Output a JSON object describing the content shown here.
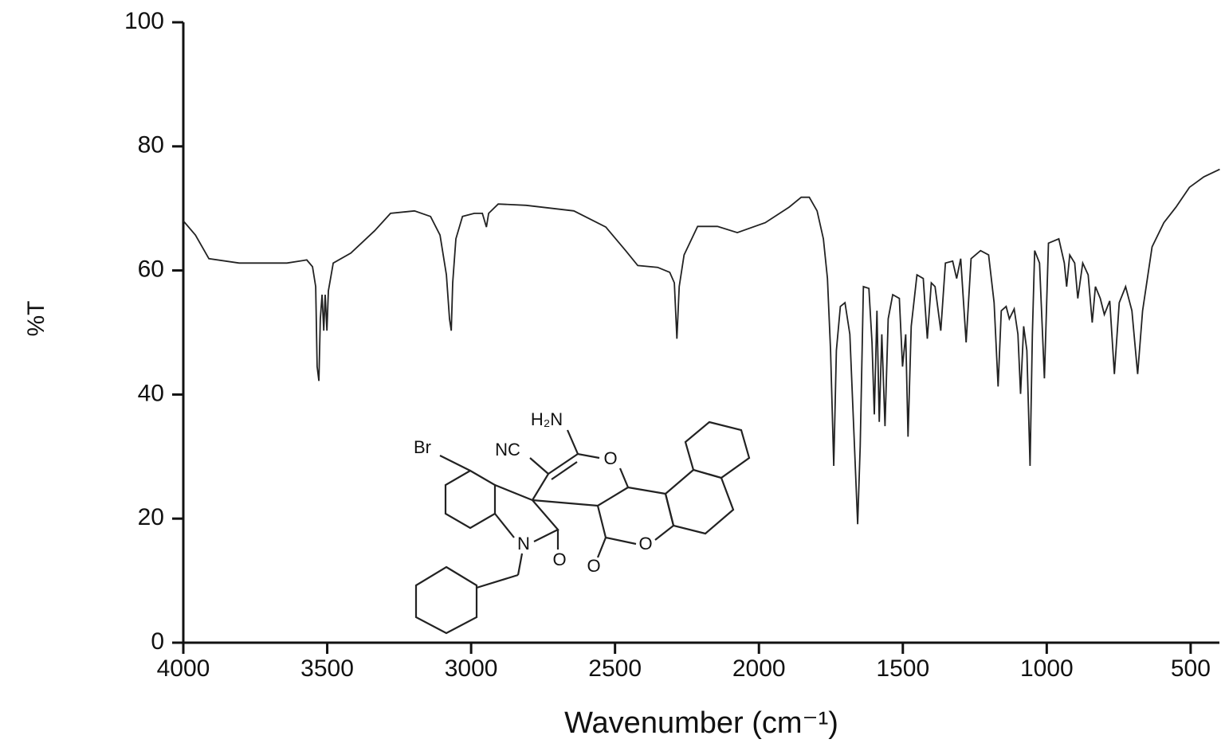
{
  "chart_data": {
    "type": "line",
    "xlabel": "Wavenumber (cm⁻¹)",
    "ylabel": "%T",
    "xlim": [
      4000,
      400
    ],
    "ylim": [
      0,
      100
    ],
    "xticks": [
      4000,
      3500,
      3000,
      2500,
      2000,
      1500,
      1000,
      500
    ],
    "yticks": [
      0,
      20,
      40,
      60,
      80,
      100
    ],
    "color": "#222222",
    "x": [
      4000,
      3958,
      3911,
      3806,
      3640,
      3571,
      3551,
      3540,
      3535,
      3529,
      3524,
      3518,
      3512,
      3507,
      3501,
      3496,
      3479,
      3418,
      3335,
      3280,
      3197,
      3141,
      3108,
      3086,
      3075,
      3069,
      3064,
      3053,
      3030,
      2989,
      2961,
      2947,
      2939,
      2906,
      2809,
      2643,
      2532,
      2463,
      2421,
      2352,
      2310,
      2294,
      2285,
      2277,
      2260,
      2213,
      2144,
      2075,
      1978,
      1895,
      1853,
      1825,
      1798,
      1776,
      1762,
      1751,
      1740,
      1731,
      1717,
      1701,
      1684,
      1668,
      1657,
      1648,
      1637,
      1618,
      1607,
      1599,
      1590,
      1582,
      1573,
      1562,
      1551,
      1535,
      1512,
      1501,
      1490,
      1482,
      1471,
      1451,
      1429,
      1415,
      1401,
      1388,
      1368,
      1352,
      1327,
      1313,
      1299,
      1280,
      1263,
      1230,
      1202,
      1183,
      1169,
      1158,
      1141,
      1130,
      1113,
      1100,
      1091,
      1080,
      1069,
      1058,
      1050,
      1042,
      1025,
      1008,
      994,
      958,
      939,
      931,
      920,
      903,
      892,
      875,
      856,
      842,
      831,
      814,
      800,
      781,
      765,
      748,
      726,
      704,
      684,
      667,
      634,
      593,
      551,
      504,
      454,
      399
    ],
    "values": [
      68.0,
      65.7,
      61.9,
      61.2,
      61.2,
      61.7,
      60.6,
      57.4,
      44.5,
      42.2,
      52.2,
      56.1,
      50.3,
      56.1,
      50.3,
      56.7,
      61.2,
      62.8,
      66.4,
      69.2,
      69.6,
      68.7,
      65.7,
      59.3,
      52.2,
      50.3,
      58.0,
      65.1,
      68.7,
      69.2,
      69.2,
      67.0,
      69.2,
      70.7,
      70.5,
      69.6,
      67.0,
      63.2,
      60.8,
      60.5,
      59.7,
      58.0,
      49.0,
      57.4,
      62.5,
      67.1,
      67.1,
      66.1,
      67.7,
      70.2,
      71.8,
      71.8,
      69.6,
      65.1,
      58.7,
      47.1,
      28.5,
      47.1,
      54.2,
      54.8,
      49.7,
      31.7,
      19.1,
      31.7,
      57.4,
      57.1,
      48.4,
      36.8,
      53.5,
      35.6,
      49.7,
      34.9,
      52.2,
      56.1,
      55.5,
      44.5,
      49.7,
      33.2,
      51.0,
      59.3,
      58.7,
      49.0,
      58.0,
      57.4,
      50.3,
      61.2,
      61.5,
      58.7,
      61.9,
      48.4,
      61.9,
      63.2,
      62.5,
      54.8,
      41.3,
      53.5,
      54.2,
      52.2,
      53.8,
      49.7,
      40.1,
      51.0,
      47.1,
      28.5,
      49.7,
      63.2,
      61.2,
      42.6,
      64.4,
      65.1,
      61.2,
      57.4,
      62.5,
      61.2,
      55.5,
      61.2,
      59.3,
      51.6,
      57.4,
      55.5,
      52.9,
      55.1,
      43.3,
      54.8,
      57.4,
      53.5,
      43.3,
      53.5,
      63.8,
      67.7,
      70.2,
      73.4,
      75.1,
      76.3
    ]
  },
  "structure": {
    "labels": [
      "Br",
      "NC",
      "H₂N",
      "O",
      "O",
      "N",
      "O",
      "O"
    ]
  }
}
